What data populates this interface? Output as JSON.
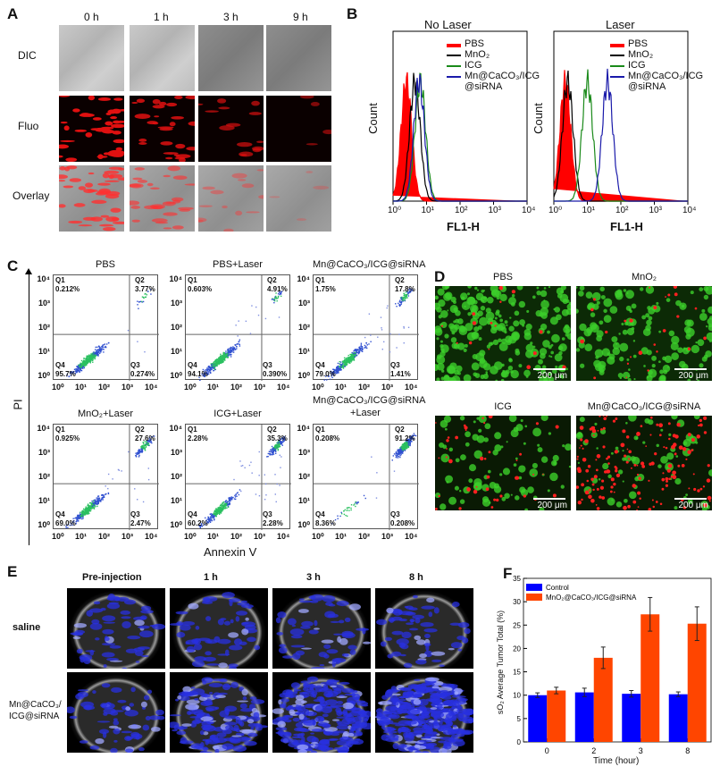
{
  "panel_a": {
    "label": "A",
    "columns": [
      "0 h",
      "1 h",
      "3 h",
      "9 h"
    ],
    "rows": [
      "DIC",
      "Fluo",
      "Overlay"
    ]
  },
  "panel_b": {
    "label": "B",
    "plots": [
      {
        "title": "No Laser",
        "ylabel": "Count",
        "xlabel": "FL1-H"
      },
      {
        "title": "Laser",
        "ylabel": "Count",
        "xlabel": "FL1-H"
      }
    ],
    "x_ticks": [
      "10⁰",
      "10¹",
      "10²",
      "10³",
      "10⁴"
    ],
    "legend": [
      {
        "name": "PBS",
        "color": "#ff0000"
      },
      {
        "name": "MnO₂",
        "color": "#000000"
      },
      {
        "name": "ICG",
        "color": "#1a8a1a"
      },
      {
        "name": "Mn@CaCO₃/ICG",
        "name2": "@siRNA",
        "color": "#1a1aaa"
      }
    ]
  },
  "panel_c": {
    "label": "C",
    "ylabel": "PI",
    "xlabel": "Annexin V",
    "ticks": [
      "10⁰",
      "10¹",
      "10²",
      "10³",
      "10⁴"
    ],
    "quadrant_names": [
      "Q1",
      "Q2",
      "Q3",
      "Q4"
    ],
    "plots": [
      {
        "title": "PBS",
        "title2": "",
        "q1": "0.212%",
        "q2": "3.77%",
        "q3": "0.274%",
        "q4": "95.7%"
      },
      {
        "title": "PBS+Laser",
        "title2": "",
        "q1": "0.603%",
        "q2": "4.91%",
        "q3": "0.390%",
        "q4": "94.1%"
      },
      {
        "title": "Mn@CaCO₃/ICG@siRNA",
        "title2": "",
        "q1": "1.75%",
        "q2": "17.8%",
        "q3": "1.41%",
        "q4": "79.0%"
      },
      {
        "title": "MnO₂+Laser",
        "title2": "",
        "q1": "0.925%",
        "q2": "27.6%",
        "q3": "2.47%",
        "q4": "69.0%"
      },
      {
        "title": "ICG+Laser",
        "title2": "",
        "q1": "2.28%",
        "q2": "35.3%",
        "q3": "2.28%",
        "q4": "60.2%"
      },
      {
        "title": "Mn@CaCO₃/ICG@siRNA",
        "title2": "+Laser",
        "q1": "0.208%",
        "q2": "91.2%",
        "q3": "0.208%",
        "q4": "8.36%"
      }
    ]
  },
  "panel_d": {
    "label": "D",
    "images": [
      {
        "title": "PBS",
        "scale": "200 μm"
      },
      {
        "title": "MnO₂",
        "scale": "200 μm"
      },
      {
        "title": "ICG",
        "scale": "200 μm"
      },
      {
        "title": "Mn@CaCO₃/ICG@siRNA",
        "scale": "200 μm"
      }
    ]
  },
  "panel_e": {
    "label": "E",
    "columns": [
      "Pre-injection",
      "1 h",
      "3 h",
      "8 h"
    ],
    "rows": [
      {
        "l1": "saline",
        "l2": ""
      },
      {
        "l1": "Mn@CaCO₃/",
        "l2": "ICG@siRNA"
      }
    ]
  },
  "chart_data": {
    "type": "bar",
    "panel_label": "F",
    "categories": [
      "0",
      "2",
      "3",
      "8"
    ],
    "xlabel": "Time (hour)",
    "ylabel": "sO₂ Average Tumor Total (%)",
    "ylim": [
      0,
      35
    ],
    "y_ticks": [
      "0",
      "5",
      "10",
      "15",
      "20",
      "25",
      "30",
      "35"
    ],
    "legend_position": "top-left",
    "series": [
      {
        "name": "Control",
        "color": "#0000ff",
        "values": [
          10.0,
          10.6,
          10.3,
          10.2
        ],
        "errors": [
          0.5,
          0.9,
          0.7,
          0.5
        ]
      },
      {
        "name": "MnO₂@CaCO₃/ICG@siRNA",
        "color": "#ff4500",
        "values": [
          11.0,
          18.0,
          27.3,
          25.3
        ],
        "errors": [
          0.7,
          2.3,
          3.6,
          3.6
        ]
      }
    ]
  }
}
